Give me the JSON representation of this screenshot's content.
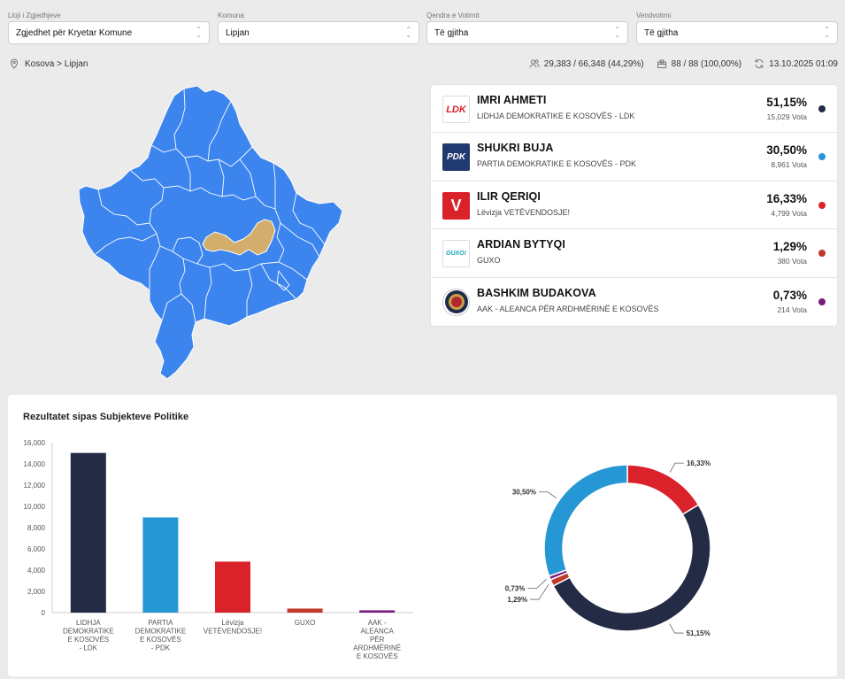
{
  "filters": [
    {
      "label": "Lloji i Zgjedhjeve",
      "value": "Zgjedhet për Kryetar Komune"
    },
    {
      "label": "Komuna",
      "value": "Lipjan"
    },
    {
      "label": "Qendra e Votimit",
      "value": "Të gjitha"
    },
    {
      "label": "Vendvotimi",
      "value": "Të gjitha"
    }
  ],
  "breadcrumb": "Kosova > Lipjan",
  "stats": {
    "turnout": "29,383 / 66,348 (44,29%)",
    "stations": "88 / 88 (100,00%)",
    "updated": "13.10.2025 01:09"
  },
  "icons": {
    "location": "map-pin-icon",
    "voters": "people-icon",
    "ballot": "ballot-box-icon",
    "refresh": "refresh-icon"
  },
  "candidates": [
    {
      "name": "IMRI AHMETI",
      "party": "LIDHJA DEMOKRATIKE E KOSOVËS - LDK",
      "percent": "51,15%",
      "votes": "15,029 Vota",
      "color": "#232b45",
      "logo_text": "LDK"
    },
    {
      "name": "SHUKRI BUJA",
      "party": "PARTIA DEMOKRATIKE E KOSOVËS - PDK",
      "percent": "30,50%",
      "votes": "8,961 Vota",
      "color": "#2597d4",
      "logo_text": "PDK"
    },
    {
      "name": "ILIR QERIQI",
      "party": "Lëvizja VETËVENDOSJE!",
      "percent": "16,33%",
      "votes": "4,799 Vota",
      "color": "#d9222a",
      "logo_text": "V"
    },
    {
      "name": "ARDIAN BYTYQI",
      "party": "GUXO",
      "percent": "1,29%",
      "votes": "380 Vota",
      "color": "#c0392b",
      "logo_text": "GUXO!"
    },
    {
      "name": "BASHKIM BUDAKOVA",
      "party": "AAK - ALEANCA PËR ARDHMËRINË E KOSOVËS",
      "percent": "0,73%",
      "votes": "214 Vota",
      "color": "#7b1c7e",
      "logo_text": ""
    }
  ],
  "results_title": "Rezultatet sipas Subjekteve Politike",
  "colors": {
    "map_fill": "#3c85ee",
    "map_highlight": "#d3ad6b"
  },
  "chart_data": [
    {
      "type": "bar",
      "categories": [
        [
          "LIDHJA",
          "DEMOKRATIKE",
          "E KOSOVËS",
          "- LDK"
        ],
        [
          "PARTIA",
          "DEMOKRATIKE",
          "E KOSOVËS",
          "- PDK"
        ],
        [
          "Lëvizja",
          "VETËVENDOSJE!"
        ],
        [
          "GUXO"
        ],
        [
          "AAK -",
          "ALEANCA",
          "PËR",
          "ARDHMËRINË",
          "E KOSOVËS"
        ]
      ],
      "values": [
        15029,
        8961,
        4799,
        380,
        214
      ],
      "colors": [
        "#232b45",
        "#2597d4",
        "#d9222a",
        "#c0392b",
        "#7b1c7e"
      ],
      "ylim": [
        0,
        16000
      ],
      "yticks": [
        "0",
        "2,000",
        "4,000",
        "6,000",
        "8,000",
        "10,000",
        "12,000",
        "14,000",
        "16,000"
      ]
    },
    {
      "type": "pie",
      "donut": true,
      "values": [
        16.33,
        51.15,
        1.29,
        0.73,
        30.5
      ],
      "labels": [
        "16,33%",
        "51,15%",
        "1,29%",
        "0,73%",
        "30,50%"
      ],
      "colors": [
        "#d9222a",
        "#232b45",
        "#c0392b",
        "#7b1c7e",
        "#2597d4"
      ]
    }
  ]
}
